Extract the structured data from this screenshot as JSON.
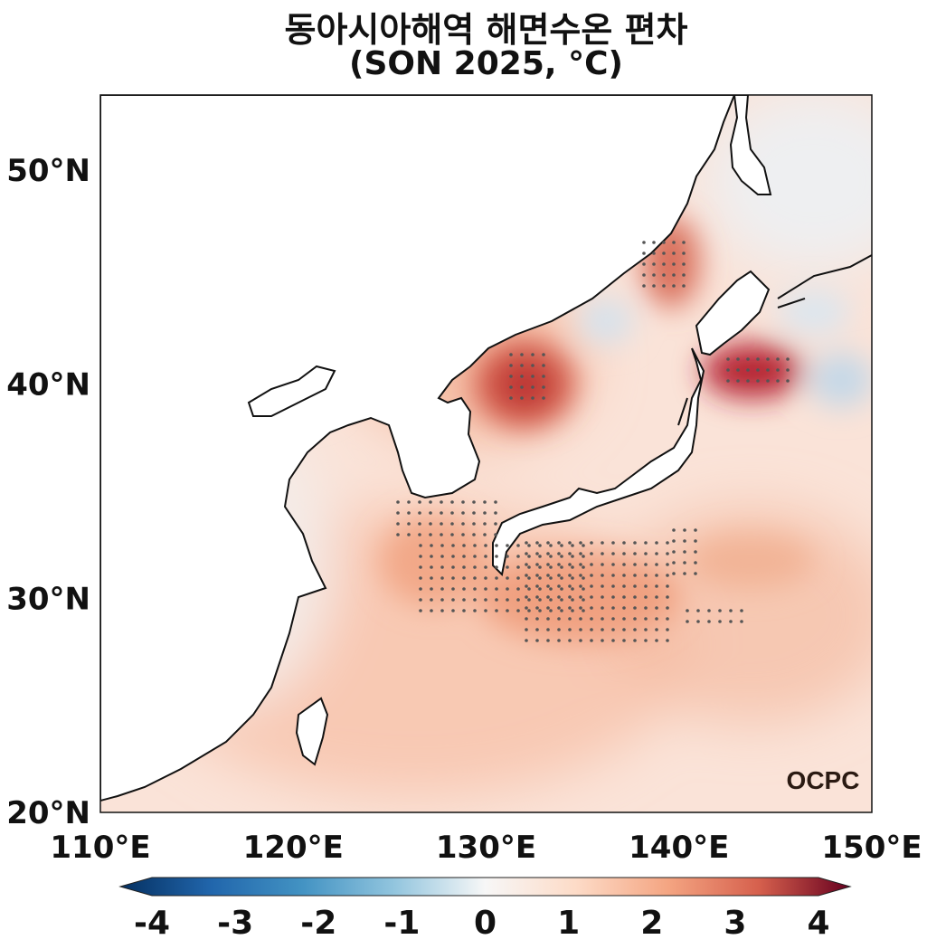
{
  "title": {
    "line1": "동아시아해역 해면수온 편차",
    "line2": "(SON 2025, °C)"
  },
  "watermark": "OCPC",
  "axes": {
    "x_ticks": [
      "110°E",
      "120°E",
      "130°E",
      "140°E",
      "150°E"
    ],
    "y_ticks": [
      "50°N",
      "40°N",
      "30°N",
      "20°N"
    ],
    "lon_range": [
      110,
      150
    ],
    "lat_range": [
      20,
      53.5
    ]
  },
  "colorbar": {
    "labels": [
      "-4",
      "-3",
      "-2",
      "-1",
      "0",
      "1",
      "2",
      "3",
      "4"
    ],
    "range": [
      -4,
      4
    ],
    "colors": {
      "negative": "#053061",
      "neutral": "#f7f7f7",
      "positive": "#67001f"
    }
  },
  "chart_data": {
    "type": "heatmap",
    "variable": "SST anomaly",
    "units": "°C",
    "hotspots": [
      {
        "lon": 132,
        "lat": 40,
        "value": 3.2
      },
      {
        "lon": 143.5,
        "lat": 40.7,
        "value": 3.6
      },
      {
        "lon": 139.5,
        "lat": 45.5,
        "value": 2.6
      },
      {
        "lon": 135,
        "lat": 30,
        "value": 1.8
      },
      {
        "lon": 129,
        "lat": 31,
        "value": 1.4
      },
      {
        "lon": 146,
        "lat": 40,
        "value": -0.8
      },
      {
        "lon": 133,
        "lat": 42.8,
        "value": -0.6
      },
      {
        "lon": 145,
        "lat": 43,
        "value": -0.5
      },
      {
        "lon": 118,
        "lat": 40,
        "value": -0.6
      },
      {
        "lon": 148,
        "lat": 51,
        "value": -0.3
      }
    ]
  }
}
